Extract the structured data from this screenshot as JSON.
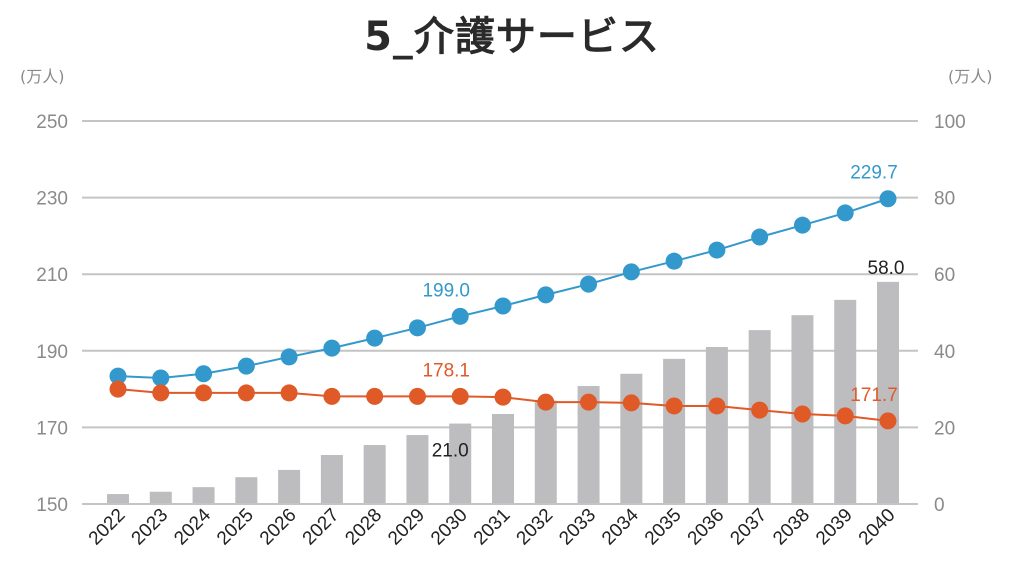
{
  "chart_data": {
    "type": "bar+line",
    "title": "5_介護サービス",
    "left_unit_label": "(万人)",
    "right_unit_label": "(万人)",
    "categories": [
      "2022",
      "2023",
      "2024",
      "2025",
      "2026",
      "2027",
      "2028",
      "2029",
      "2030",
      "2031",
      "2032",
      "2033",
      "2034",
      "2035",
      "2036",
      "2037",
      "2038",
      "2039",
      "2040"
    ],
    "left_axis": {
      "ylim": [
        150,
        250
      ],
      "ticks": [
        "150",
        "170",
        "190",
        "210",
        "230",
        "250"
      ]
    },
    "right_axis": {
      "ylim": [
        0,
        100
      ],
      "ticks": [
        "0",
        "20",
        "40",
        "60",
        "80",
        "100"
      ]
    },
    "grid": true,
    "series": [
      {
        "name": "bars",
        "type": "bar",
        "axis": "right",
        "color": "#bdbdc0",
        "values": [
          2.6,
          3.2,
          4.4,
          7.0,
          8.9,
          12.8,
          15.4,
          18.0,
          21.0,
          23.5,
          27.0,
          30.8,
          34.0,
          37.9,
          41.0,
          45.4,
          49.3,
          53.3,
          58.0
        ],
        "labels": {
          "8": "21.0",
          "18": "58.0"
        }
      },
      {
        "name": "blue-line",
        "type": "line",
        "axis": "left",
        "color": "#3399cc",
        "values": [
          183.4,
          182.9,
          184.0,
          186.0,
          188.4,
          190.7,
          193.3,
          196.0,
          199.0,
          201.7,
          204.6,
          207.4,
          210.6,
          213.4,
          216.3,
          219.7,
          222.8,
          226.0,
          229.7
        ],
        "labels": {
          "8": "199.0",
          "18": "229.7"
        }
      },
      {
        "name": "orange-line",
        "type": "line",
        "axis": "left",
        "color": "#e05a28",
        "values": [
          180.0,
          179.0,
          179.0,
          179.0,
          179.0,
          178.1,
          178.1,
          178.1,
          178.1,
          177.9,
          176.6,
          176.6,
          176.4,
          175.6,
          175.6,
          174.5,
          173.5,
          173.0,
          171.7
        ],
        "labels": {
          "8": "178.1",
          "18": "171.7"
        }
      }
    ]
  }
}
